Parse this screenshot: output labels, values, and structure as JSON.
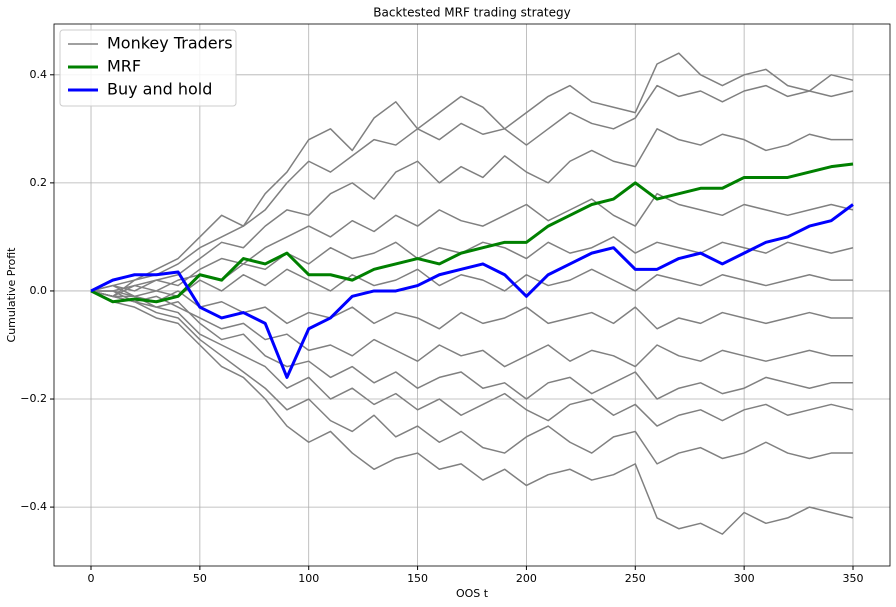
{
  "chart_data": {
    "type": "line",
    "title": "Backtested MRF trading strategy",
    "x_label": "OOS t",
    "y_label": "Cumulative Profit",
    "x": [
      0,
      10,
      20,
      30,
      40,
      50,
      60,
      70,
      80,
      90,
      100,
      110,
      120,
      130,
      140,
      150,
      160,
      170,
      180,
      190,
      200,
      210,
      220,
      230,
      240,
      250,
      260,
      270,
      280,
      290,
      300,
      310,
      320,
      330,
      340,
      350
    ],
    "xlim": [
      -17,
      367
    ],
    "ylim": [
      -0.509,
      0.494
    ],
    "xticks": [
      0,
      50,
      100,
      150,
      200,
      250,
      300,
      350
    ],
    "yticks": [
      {
        "value": -0.4,
        "label": "−0.4"
      },
      {
        "value": -0.2,
        "label": "−0.2"
      },
      {
        "value": 0,
        "label": "0.0"
      },
      {
        "value": 0.2,
        "label": "0.2"
      },
      {
        "value": 0.4,
        "label": "0.4"
      }
    ],
    "grid": true,
    "legend": "upper-left",
    "series": [
      {
        "name": "Monkey Traders",
        "color": "#808080",
        "values": [
          [
            0,
            0.01,
            0.02,
            0.04,
            0.06,
            0.1,
            0.14,
            0.12,
            0.18,
            0.22,
            0.28,
            0.3,
            0.26,
            0.32,
            0.35,
            0.3,
            0.33,
            0.36,
            0.34,
            0.3,
            0.33,
            0.36,
            0.38,
            0.35,
            0.34,
            0.33,
            0.42,
            0.44,
            0.4,
            0.38,
            0.4,
            0.41,
            0.38,
            0.37,
            0.4,
            0.39
          ],
          [
            0,
            -0.01,
            0.02,
            0.03,
            0.05,
            0.08,
            0.1,
            0.12,
            0.15,
            0.2,
            0.24,
            0.22,
            0.25,
            0.28,
            0.27,
            0.3,
            0.28,
            0.31,
            0.29,
            0.3,
            0.27,
            0.3,
            0.33,
            0.31,
            0.3,
            0.32,
            0.38,
            0.36,
            0.37,
            0.35,
            0.37,
            0.38,
            0.36,
            0.37,
            0.36,
            0.37
          ],
          [
            0,
            0.01,
            0,
            0.02,
            0.03,
            0.06,
            0.09,
            0.08,
            0.12,
            0.15,
            0.14,
            0.18,
            0.2,
            0.17,
            0.22,
            0.24,
            0.2,
            0.23,
            0.21,
            0.25,
            0.22,
            0.2,
            0.24,
            0.26,
            0.24,
            0.23,
            0.3,
            0.28,
            0.27,
            0.29,
            0.28,
            0.26,
            0.27,
            0.29,
            0.28,
            0.28
          ],
          [
            0,
            0,
            0.01,
            0.02,
            0.01,
            0.04,
            0.06,
            0.05,
            0.08,
            0.1,
            0.12,
            0.1,
            0.13,
            0.11,
            0.14,
            0.12,
            0.15,
            0.13,
            0.12,
            0.14,
            0.16,
            0.13,
            0.15,
            0.17,
            0.14,
            0.12,
            0.18,
            0.16,
            0.15,
            0.14,
            0.16,
            0.15,
            0.14,
            0.15,
            0.16,
            0.15
          ],
          [
            0,
            0.01,
            -0.01,
            0,
            0.02,
            0.03,
            0.02,
            0.05,
            0.04,
            0.07,
            0.05,
            0.08,
            0.06,
            0.07,
            0.09,
            0.06,
            0.08,
            0.07,
            0.09,
            0.08,
            0.06,
            0.09,
            0.07,
            0.08,
            0.1,
            0.07,
            0.09,
            0.08,
            0.07,
            0.09,
            0.08,
            0.07,
            0.09,
            0.08,
            0.07,
            0.08
          ],
          [
            0,
            -0.01,
            0.01,
            0,
            -0.01,
            0.02,
            0,
            0.03,
            0.01,
            0.04,
            0.02,
            0,
            0.03,
            0.01,
            0.02,
            0.04,
            0.01,
            0.03,
            0.02,
            0,
            0.03,
            0.01,
            0.02,
            0.04,
            0.02,
            0,
            0.03,
            0.02,
            0.01,
            0.03,
            0.02,
            0.01,
            0.02,
            0.03,
            0.02,
            0.02
          ],
          [
            0,
            0,
            -0.01,
            -0.02,
            0,
            -0.03,
            -0.02,
            -0.04,
            -0.03,
            -0.06,
            -0.04,
            -0.05,
            -0.03,
            -0.06,
            -0.04,
            -0.05,
            -0.07,
            -0.04,
            -0.06,
            -0.05,
            -0.03,
            -0.06,
            -0.05,
            -0.04,
            -0.06,
            -0.03,
            -0.07,
            -0.05,
            -0.06,
            -0.04,
            -0.05,
            -0.06,
            -0.05,
            -0.04,
            -0.05,
            -0.05
          ],
          [
            0,
            -0.01,
            -0.02,
            -0.01,
            -0.03,
            -0.05,
            -0.07,
            -0.06,
            -0.09,
            -0.08,
            -0.11,
            -0.1,
            -0.12,
            -0.09,
            -0.11,
            -0.13,
            -0.1,
            -0.12,
            -0.11,
            -0.14,
            -0.12,
            -0.1,
            -0.13,
            -0.11,
            -0.12,
            -0.14,
            -0.1,
            -0.12,
            -0.13,
            -0.11,
            -0.12,
            -0.13,
            -0.12,
            -0.11,
            -0.12,
            -0.12
          ],
          [
            0,
            0,
            -0.02,
            -0.03,
            -0.02,
            -0.06,
            -0.09,
            -0.08,
            -0.12,
            -0.14,
            -0.13,
            -0.16,
            -0.14,
            -0.17,
            -0.15,
            -0.18,
            -0.16,
            -0.15,
            -0.18,
            -0.17,
            -0.2,
            -0.17,
            -0.16,
            -0.19,
            -0.17,
            -0.15,
            -0.2,
            -0.18,
            -0.17,
            -0.19,
            -0.18,
            -0.16,
            -0.17,
            -0.18,
            -0.17,
            -0.17
          ],
          [
            0,
            -0.01,
            -0.01,
            -0.03,
            -0.04,
            -0.08,
            -0.1,
            -0.12,
            -0.14,
            -0.18,
            -0.16,
            -0.2,
            -0.18,
            -0.21,
            -0.19,
            -0.22,
            -0.2,
            -0.23,
            -0.21,
            -0.19,
            -0.22,
            -0.24,
            -0.21,
            -0.2,
            -0.23,
            -0.21,
            -0.25,
            -0.23,
            -0.22,
            -0.24,
            -0.22,
            -0.21,
            -0.23,
            -0.22,
            -0.21,
            -0.22
          ],
          [
            0,
            -0.01,
            -0.02,
            -0.04,
            -0.05,
            -0.09,
            -0.12,
            -0.15,
            -0.18,
            -0.22,
            -0.2,
            -0.24,
            -0.26,
            -0.23,
            -0.27,
            -0.25,
            -0.28,
            -0.26,
            -0.29,
            -0.3,
            -0.27,
            -0.25,
            -0.28,
            -0.3,
            -0.27,
            -0.26,
            -0.32,
            -0.3,
            -0.29,
            -0.31,
            -0.3,
            -0.28,
            -0.3,
            -0.31,
            -0.3,
            -0.3
          ],
          [
            0,
            -0.02,
            -0.03,
            -0.05,
            -0.06,
            -0.1,
            -0.14,
            -0.16,
            -0.2,
            -0.25,
            -0.28,
            -0.26,
            -0.3,
            -0.33,
            -0.31,
            -0.3,
            -0.33,
            -0.32,
            -0.35,
            -0.33,
            -0.36,
            -0.34,
            -0.33,
            -0.35,
            -0.34,
            -0.32,
            -0.42,
            -0.44,
            -0.43,
            -0.45,
            -0.41,
            -0.43,
            -0.42,
            -0.4,
            -0.41,
            -0.42
          ]
        ]
      },
      {
        "name": "MRF",
        "color": "#008000",
        "values": [
          0,
          -0.02,
          -0.015,
          -0.02,
          -0.01,
          0.03,
          0.02,
          0.06,
          0.05,
          0.07,
          0.03,
          0.03,
          0.02,
          0.04,
          0.05,
          0.06,
          0.05,
          0.07,
          0.08,
          0.09,
          0.09,
          0.12,
          0.14,
          0.16,
          0.17,
          0.2,
          0.17,
          0.18,
          0.19,
          0.19,
          0.21,
          0.21,
          0.21,
          0.22,
          0.23,
          0.235
        ]
      },
      {
        "name": "Buy and hold",
        "color": "#0000ff",
        "values": [
          0,
          0.02,
          0.03,
          0.03,
          0.035,
          -0.03,
          -0.05,
          -0.04,
          -0.06,
          -0.16,
          -0.07,
          -0.05,
          -0.01,
          0,
          0,
          0.01,
          0.03,
          0.04,
          0.05,
          0.03,
          -0.01,
          0.03,
          0.05,
          0.07,
          0.08,
          0.04,
          0.04,
          0.06,
          0.07,
          0.05,
          0.07,
          0.09,
          0.1,
          0.12,
          0.13,
          0.16
        ]
      }
    ]
  }
}
